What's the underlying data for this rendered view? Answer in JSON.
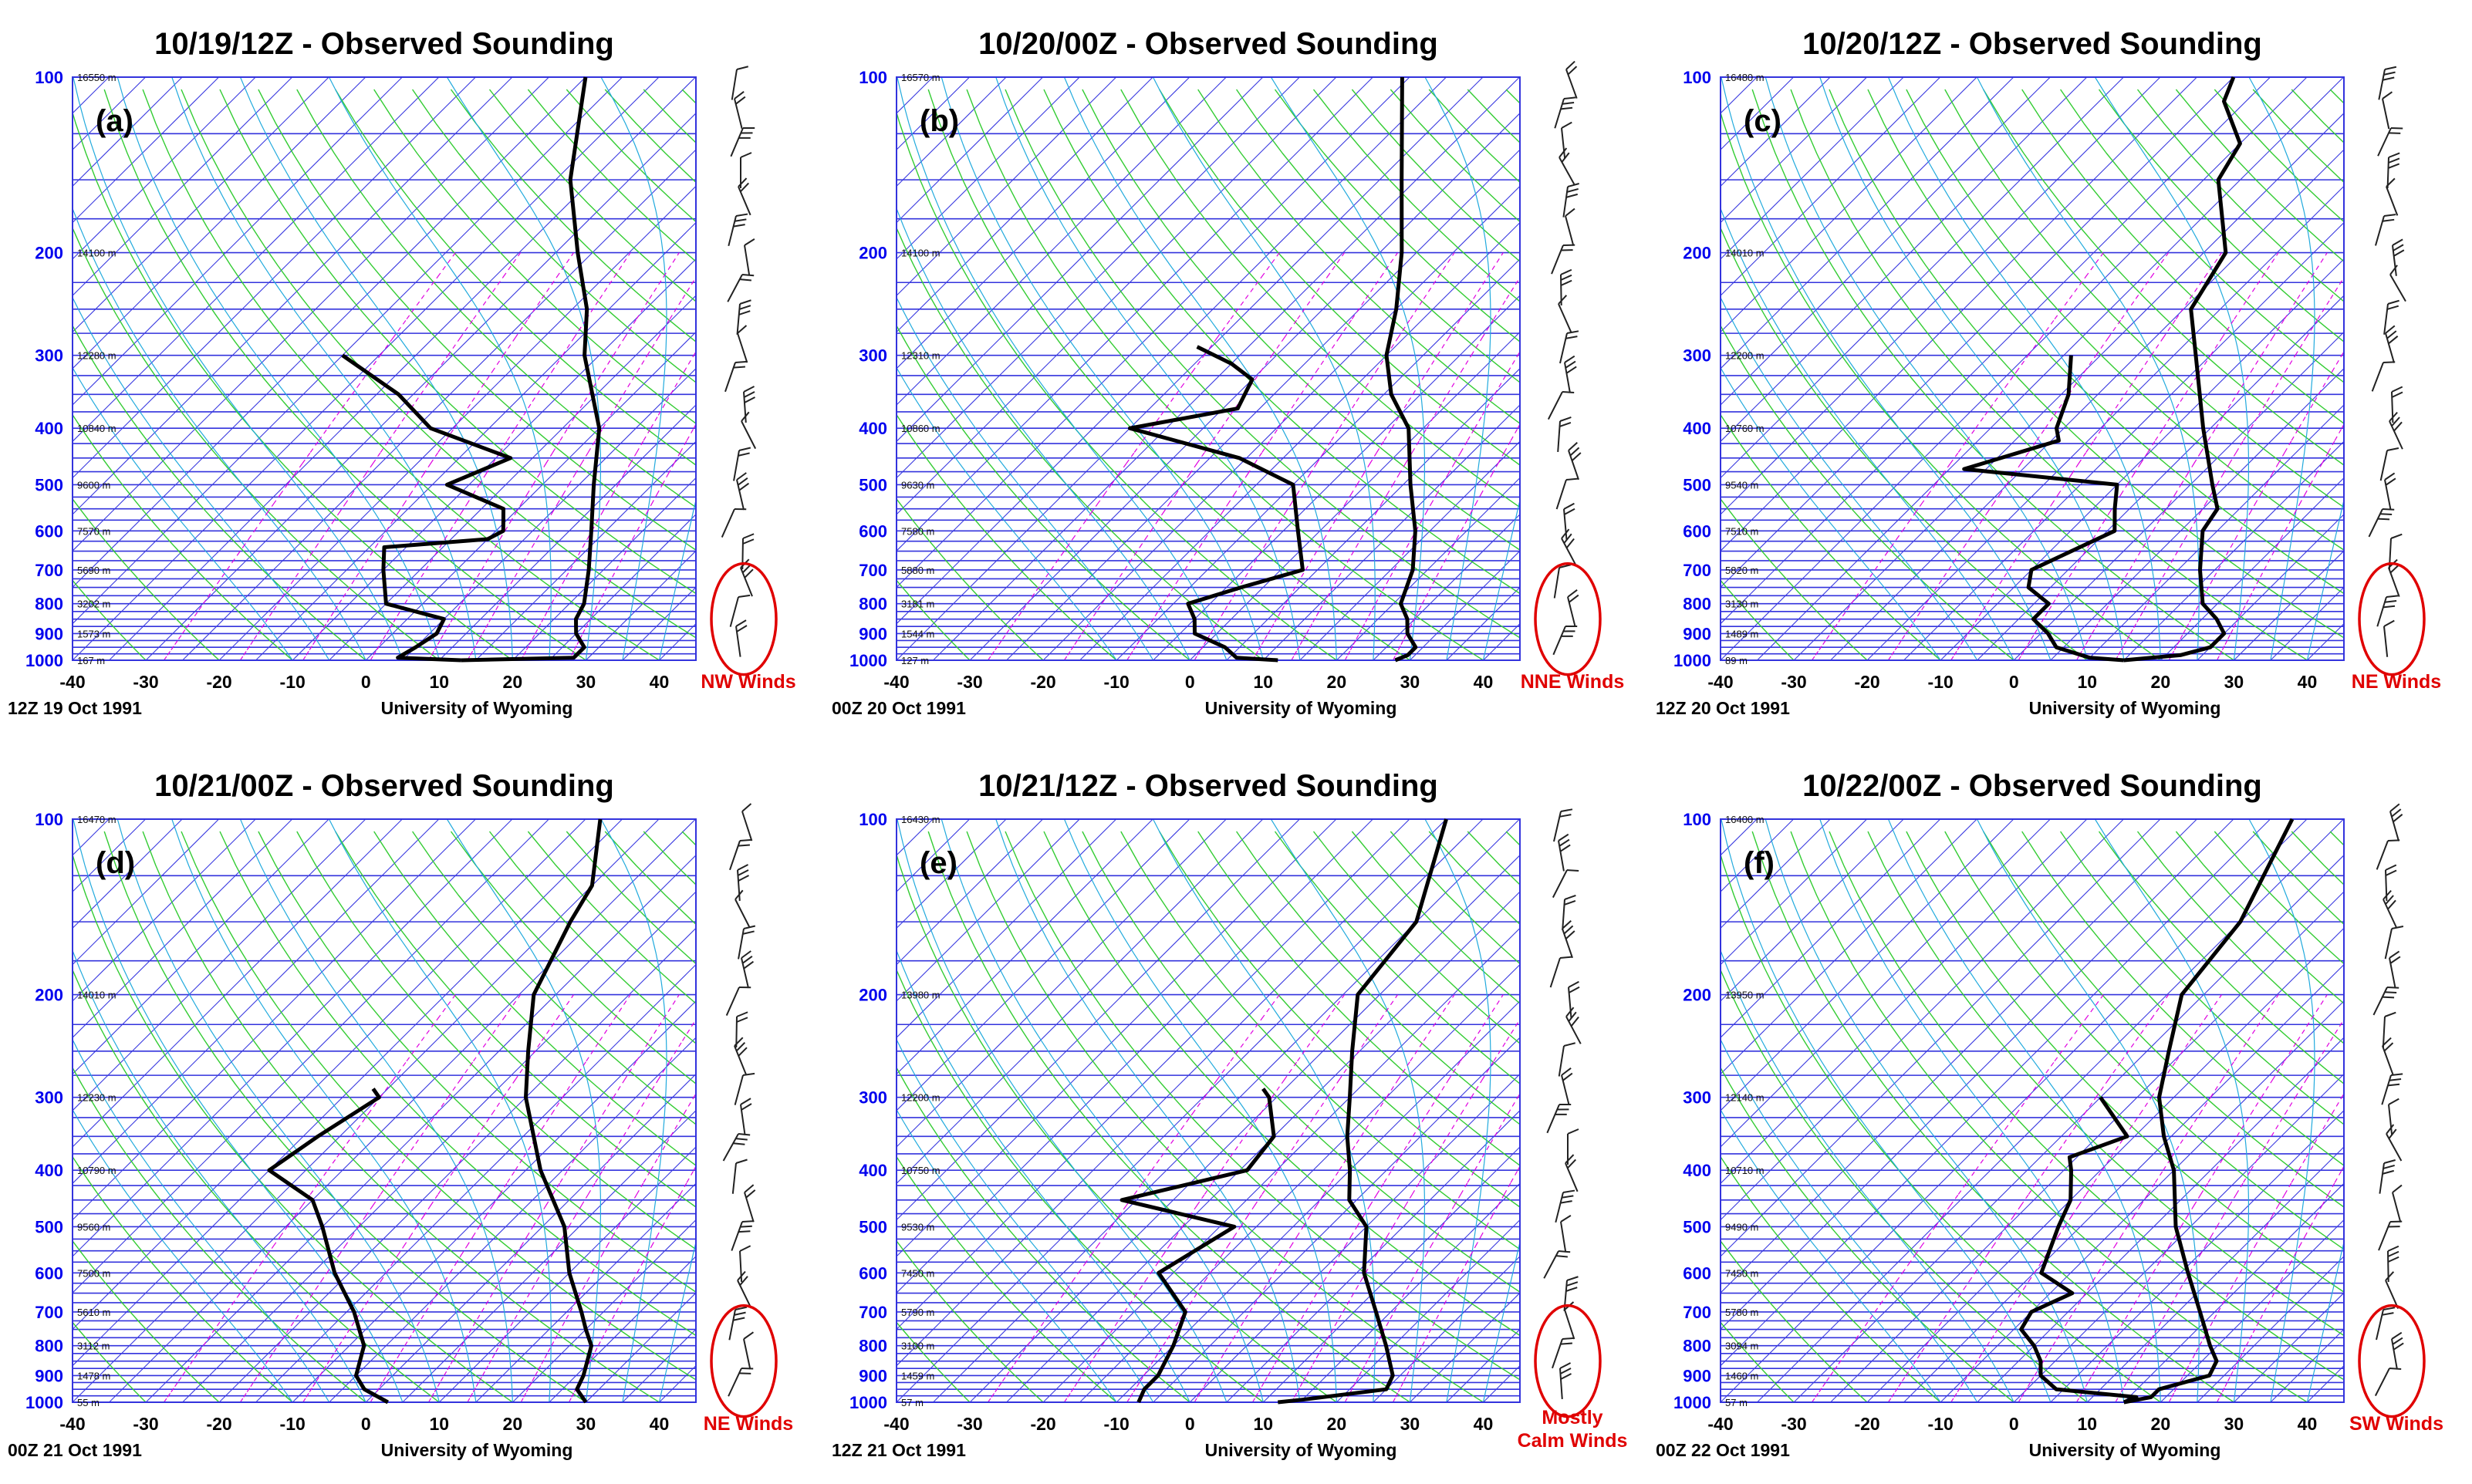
{
  "chart_data": [
    {
      "type": "skew-t",
      "title": "10/19/12Z - Observed Sounding",
      "panel_label": "(a)",
      "footer_left": "12Z 19 Oct 1991",
      "footer_right": "University of Wyoming",
      "wind_note": "NW Winds",
      "xlim": [
        -40,
        45
      ],
      "pressure_ticks": [
        "100",
        "200",
        "300",
        "400",
        "500",
        "600",
        "700",
        "800",
        "900",
        "1000"
      ],
      "temperature_ticks": [
        "-40",
        "-30",
        "-20",
        "-10",
        "0",
        "10",
        "20",
        "30",
        "40"
      ],
      "heights": [
        "16550 m",
        "14100 m",
        "12280 m",
        "10840 m",
        "9600 m",
        "7570 m",
        "5690 m",
        "3202 m",
        "1573 m",
        "167 m"
      ],
      "series": [
        {
          "values": [
            [
              1000,
              13
            ],
            [
              990,
              28
            ],
            [
              950,
              28
            ],
            [
              900,
              25
            ],
            [
              850,
              23
            ],
            [
              800,
              22
            ],
            [
              700,
              18
            ],
            [
              600,
              13
            ],
            [
              500,
              7
            ],
            [
              400,
              0
            ],
            [
              300,
              -12
            ],
            [
              250,
              -18
            ],
            [
              200,
              -27
            ],
            [
              150,
              -38
            ],
            [
              100,
              -50
            ]
          ]
        },
        {
          "values": [
            [
              1000,
              13
            ],
            [
              990,
              4
            ],
            [
              950,
              5
            ],
            [
              900,
              6
            ],
            [
              850,
              5
            ],
            [
              800,
              -5
            ],
            [
              700,
              -10
            ],
            [
              640,
              -13
            ],
            [
              620,
              0
            ],
            [
              600,
              1
            ],
            [
              550,
              -2
            ],
            [
              500,
              -13
            ],
            [
              450,
              -8
            ],
            [
              400,
              -23
            ],
            [
              350,
              -32
            ],
            [
              300,
              -45
            ]
          ]
        }
      ]
    },
    {
      "type": "skew-t",
      "title": "10/20/00Z - Observed Sounding",
      "panel_label": "(b)",
      "footer_left": "00Z 20 Oct 1991",
      "footer_right": "University of Wyoming",
      "wind_note": "NNE Winds",
      "xlim": [
        -40,
        45
      ],
      "pressure_ticks": [
        "100",
        "200",
        "300",
        "400",
        "500",
        "600",
        "700",
        "800",
        "900",
        "1000"
      ],
      "temperature_ticks": [
        "-40",
        "-30",
        "-20",
        "-10",
        "0",
        "10",
        "20",
        "30",
        "40"
      ],
      "heights": [
        "16570 m",
        "14100 m",
        "12310 m",
        "10860 m",
        "9630 m",
        "7580 m",
        "5880 m",
        "3181 m",
        "1544 m",
        "127 m"
      ],
      "series": [
        {
          "values": [
            [
              1000,
              28
            ],
            [
              980,
              29
            ],
            [
              950,
              29
            ],
            [
              900,
              26
            ],
            [
              850,
              24
            ],
            [
              800,
              21
            ],
            [
              700,
              18
            ],
            [
              600,
              13
            ],
            [
              500,
              6
            ],
            [
              400,
              -2
            ],
            [
              350,
              -9
            ],
            [
              300,
              -15
            ],
            [
              250,
              -20
            ],
            [
              200,
              -27
            ],
            [
              150,
              -37
            ],
            [
              100,
              -51
            ]
          ]
        },
        {
          "values": [
            [
              1000,
              12
            ],
            [
              990,
              6
            ],
            [
              950,
              3
            ],
            [
              900,
              -3
            ],
            [
              850,
              -5
            ],
            [
              800,
              -8
            ],
            [
              750,
              -3
            ],
            [
              700,
              3
            ],
            [
              600,
              -3
            ],
            [
              500,
              -10
            ],
            [
              450,
              -21
            ],
            [
              400,
              -40
            ],
            [
              370,
              -28
            ],
            [
              330,
              -30
            ],
            [
              310,
              -35
            ],
            [
              290,
              -42
            ]
          ]
        }
      ]
    },
    {
      "type": "skew-t",
      "title": "10/20/12Z - Observed Sounding",
      "panel_label": "(c)",
      "footer_left": "12Z 20 Oct 1991",
      "footer_right": "University of Wyoming",
      "wind_note": "NE Winds",
      "xlim": [
        -40,
        45
      ],
      "pressure_ticks": [
        "100",
        "200",
        "300",
        "400",
        "500",
        "600",
        "700",
        "800",
        "900",
        "1000"
      ],
      "temperature_ticks": [
        "-40",
        "-30",
        "-20",
        "-10",
        "0",
        "10",
        "20",
        "30",
        "40"
      ],
      "heights": [
        "16480 m",
        "14010 m",
        "12200 m",
        "10760 m",
        "9540 m",
        "7510 m",
        "5820 m",
        "3130 m",
        "1489 m",
        "89 m"
      ],
      "series": [
        {
          "values": [
            [
              1000,
              15
            ],
            [
              980,
              22
            ],
            [
              950,
              25
            ],
            [
              900,
              25
            ],
            [
              850,
              22
            ],
            [
              800,
              18
            ],
            [
              700,
              13
            ],
            [
              600,
              8
            ],
            [
              550,
              7
            ],
            [
              500,
              3
            ],
            [
              400,
              -6
            ],
            [
              300,
              -17
            ],
            [
              250,
              -24
            ],
            [
              200,
              -27
            ],
            [
              150,
              -38
            ],
            [
              130,
              -40
            ],
            [
              110,
              -48
            ],
            [
              100,
              -50
            ]
          ]
        },
        {
          "values": [
            [
              1000,
              15
            ],
            [
              990,
              10
            ],
            [
              950,
              4
            ],
            [
              900,
              1
            ],
            [
              850,
              -3
            ],
            [
              800,
              -3
            ],
            [
              750,
              -8
            ],
            [
              700,
              -10
            ],
            [
              600,
              -4
            ],
            [
              550,
              -7
            ],
            [
              500,
              -10
            ],
            [
              470,
              -33
            ],
            [
              420,
              -24
            ],
            [
              400,
              -26
            ],
            [
              350,
              -29
            ],
            [
              300,
              -34
            ]
          ]
        }
      ]
    },
    {
      "type": "skew-t",
      "title": "10/21/00Z - Observed Sounding",
      "panel_label": "(d)",
      "footer_left": "00Z 21 Oct 1991",
      "footer_right": "University of Wyoming",
      "wind_note": "NE Winds",
      "xlim": [
        -40,
        45
      ],
      "pressure_ticks": [
        "100",
        "200",
        "300",
        "400",
        "500",
        "600",
        "700",
        "800",
        "900",
        "1000"
      ],
      "temperature_ticks": [
        "-40",
        "-30",
        "-20",
        "-10",
        "0",
        "10",
        "20",
        "30",
        "40"
      ],
      "heights": [
        "16470 m",
        "14010 m",
        "12230 m",
        "10790 m",
        "9560 m",
        "7500 m",
        "5610 m",
        "3112 m",
        "1478 m",
        "55 m"
      ],
      "series": [
        {
          "values": [
            [
              1000,
              30
            ],
            [
              950,
              27
            ],
            [
              900,
              26
            ],
            [
              800,
              23
            ],
            [
              750,
              20
            ],
            [
              700,
              17
            ],
            [
              600,
              10
            ],
            [
              500,
              3
            ],
            [
              400,
              -8
            ],
            [
              300,
              -20
            ],
            [
              250,
              -26
            ],
            [
              200,
              -33
            ],
            [
              150,
              -38
            ],
            [
              130,
              -40
            ],
            [
              100,
              -48
            ]
          ]
        },
        {
          "values": [
            [
              1000,
              3
            ],
            [
              950,
              -2
            ],
            [
              900,
              -5
            ],
            [
              800,
              -8
            ],
            [
              700,
              -14
            ],
            [
              600,
              -22
            ],
            [
              500,
              -30
            ],
            [
              450,
              -35
            ],
            [
              400,
              -45
            ],
            [
              350,
              -43
            ],
            [
              300,
              -40
            ],
            [
              290,
              -42
            ]
          ]
        }
      ]
    },
    {
      "type": "skew-t",
      "title": "10/21/12Z - Observed Sounding",
      "panel_label": "(e)",
      "footer_left": "12Z 21 Oct 1991",
      "footer_right": "University of Wyoming",
      "wind_note": "Mostly Calm Winds",
      "xlim": [
        -40,
        45
      ],
      "pressure_ticks": [
        "100",
        "200",
        "300",
        "400",
        "500",
        "600",
        "700",
        "800",
        "900",
        "1000"
      ],
      "temperature_ticks": [
        "-40",
        "-30",
        "-20",
        "-10",
        "0",
        "10",
        "20",
        "30",
        "40"
      ],
      "heights": [
        "16430 m",
        "13980 m",
        "12200 m",
        "10750 m",
        "9530 m",
        "7450 m",
        "5790 m",
        "3100 m",
        "1459 m",
        "57 m"
      ],
      "series": [
        {
          "values": [
            [
              1000,
              12
            ],
            [
              990,
              15
            ],
            [
              950,
              25
            ],
            [
              900,
              24
            ],
            [
              800,
              19
            ],
            [
              700,
              13
            ],
            [
              600,
              6
            ],
            [
              500,
              0
            ],
            [
              450,
              -6
            ],
            [
              400,
              -10
            ],
            [
              350,
              -15
            ],
            [
              300,
              -20
            ],
            [
              250,
              -26
            ],
            [
              200,
              -33
            ],
            [
              150,
              -35
            ],
            [
              100,
              -45
            ]
          ]
        },
        {
          "values": [
            [
              1000,
              -7
            ],
            [
              950,
              -8
            ],
            [
              900,
              -8
            ],
            [
              800,
              -10
            ],
            [
              700,
              -13
            ],
            [
              600,
              -22
            ],
            [
              500,
              -18
            ],
            [
              450,
              -37
            ],
            [
              400,
              -24
            ],
            [
              350,
              -25
            ],
            [
              300,
              -31
            ],
            [
              290,
              -33
            ]
          ]
        }
      ]
    },
    {
      "type": "skew-t",
      "title": "10/22/00Z - Observed Sounding",
      "panel_label": "(f)",
      "footer_left": "00Z 22 Oct 1991",
      "footer_right": "University of Wyoming",
      "wind_note": "SW Winds",
      "xlim": [
        -40,
        45
      ],
      "pressure_ticks": [
        "100",
        "200",
        "300",
        "400",
        "500",
        "600",
        "700",
        "800",
        "900",
        "1000"
      ],
      "temperature_ticks": [
        "-40",
        "-30",
        "-20",
        "-10",
        "0",
        "10",
        "20",
        "30",
        "40"
      ],
      "heights": [
        "16400 m",
        "13950 m",
        "12140 m",
        "10710 m",
        "9490 m",
        "7450 m",
        "5780 m",
        "3094 m",
        "1460 m",
        "57 m"
      ],
      "series": [
        {
          "values": [
            [
              1000,
              15
            ],
            [
              980,
              18
            ],
            [
              950,
              18
            ],
            [
              900,
              23
            ],
            [
              850,
              22
            ],
            [
              800,
              19
            ],
            [
              700,
              13
            ],
            [
              600,
              6
            ],
            [
              500,
              -2
            ],
            [
              400,
              -10
            ],
            [
              350,
              -16
            ],
            [
              300,
              -22
            ],
            [
              250,
              -27
            ],
            [
              200,
              -33
            ],
            [
              150,
              -35
            ],
            [
              100,
              -42
            ]
          ]
        },
        {
          "values": [
            [
              1000,
              15
            ],
            [
              980,
              16
            ],
            [
              950,
              4
            ],
            [
              900,
              0
            ],
            [
              850,
              -2
            ],
            [
              800,
              -5
            ],
            [
              750,
              -9
            ],
            [
              700,
              -10
            ],
            [
              650,
              -7
            ],
            [
              600,
              -14
            ],
            [
              500,
              -18
            ],
            [
              450,
              -20
            ],
            [
              400,
              -24
            ],
            [
              380,
              -26
            ],
            [
              350,
              -21
            ],
            [
              300,
              -30
            ]
          ]
        }
      ]
    }
  ]
}
